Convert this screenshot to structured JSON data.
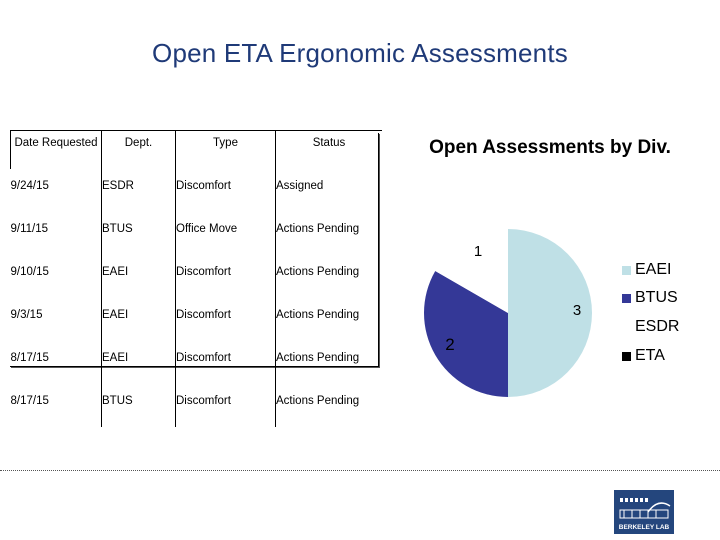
{
  "slide": {
    "title": "Open ETA Ergonomic Assessments"
  },
  "table": {
    "headers": [
      "Date Requested",
      "Dept.",
      "Type",
      "Status"
    ],
    "rows": [
      [
        "9/24/15",
        "ESDR",
        "Discomfort",
        "Assigned"
      ],
      [
        "9/11/15",
        "BTUS",
        "Office Move",
        "Actions Pending"
      ],
      [
        "9/10/15",
        "EAEI",
        "Discomfort",
        "Actions Pending"
      ],
      [
        "9/3/15",
        "EAEI",
        "Discomfort",
        "Actions Pending"
      ],
      [
        "8/17/15",
        "EAEI",
        "Discomfort",
        "Actions Pending"
      ],
      [
        "8/17/15",
        "BTUS",
        "Discomfort",
        "Actions Pending"
      ]
    ]
  },
  "chart_data": {
    "type": "pie",
    "title": "Open Assessments by Div.",
    "categories": [
      "EAEI",
      "BTUS",
      "ESDR",
      "ETA"
    ],
    "values": [
      3,
      2,
      1,
      0
    ],
    "data_labels": [
      "3",
      "2",
      "1",
      ""
    ],
    "colors": [
      "#bfe0e6",
      "#343897",
      "#ffffff",
      "#000000"
    ],
    "legend_position": "right"
  },
  "logo": {
    "text": "BERKELEY LAB"
  }
}
